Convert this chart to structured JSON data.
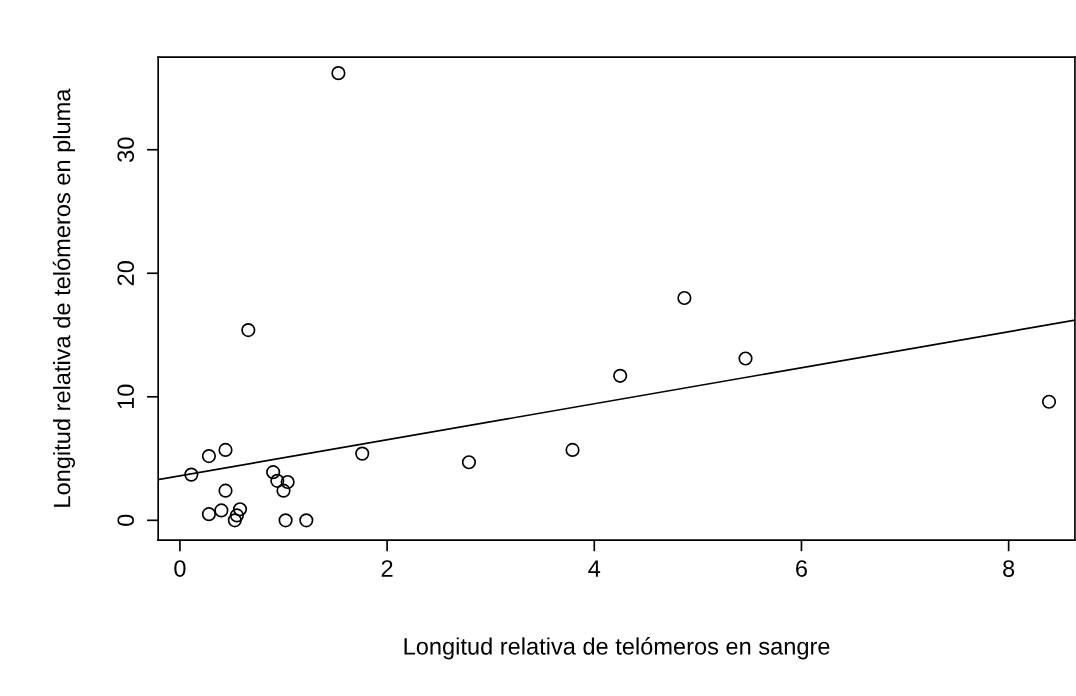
{
  "chart_data": {
    "type": "scatter",
    "xlabel": "Longitud relativa de telómeros en sangre",
    "ylabel": "Longitud relativa de telómeros en pluma",
    "xlim": [
      -0.21,
      8.64
    ],
    "ylim": [
      -1.6,
      37.5
    ],
    "xticks": [
      0,
      2,
      4,
      6,
      8
    ],
    "yticks": [
      0,
      10,
      20,
      30
    ],
    "grid": false,
    "series": [
      {
        "marker": "circle",
        "color": "#000000",
        "x": [
          0.11,
          0.28,
          0.44,
          0.44,
          0.28,
          0.4,
          0.58,
          0.55,
          0.53,
          0.9,
          0.94,
          1.04,
          1.0,
          1.02,
          1.22,
          0.66,
          1.53,
          1.76,
          2.79,
          3.79,
          4.25,
          4.87,
          5.46,
          8.39
        ],
        "values": [
          3.7,
          5.2,
          5.7,
          2.4,
          0.5,
          0.8,
          0.9,
          0.4,
          0.0,
          3.9,
          3.2,
          3.1,
          2.4,
          0.0,
          0.0,
          15.4,
          36.2,
          5.4,
          4.7,
          5.7,
          11.7,
          18.0,
          13.1,
          9.6
        ]
      },
      {
        "type": "line",
        "color": "#000000",
        "x": [
          -0.21,
          8.64
        ],
        "values": [
          3.3,
          16.2
        ]
      }
    ]
  }
}
